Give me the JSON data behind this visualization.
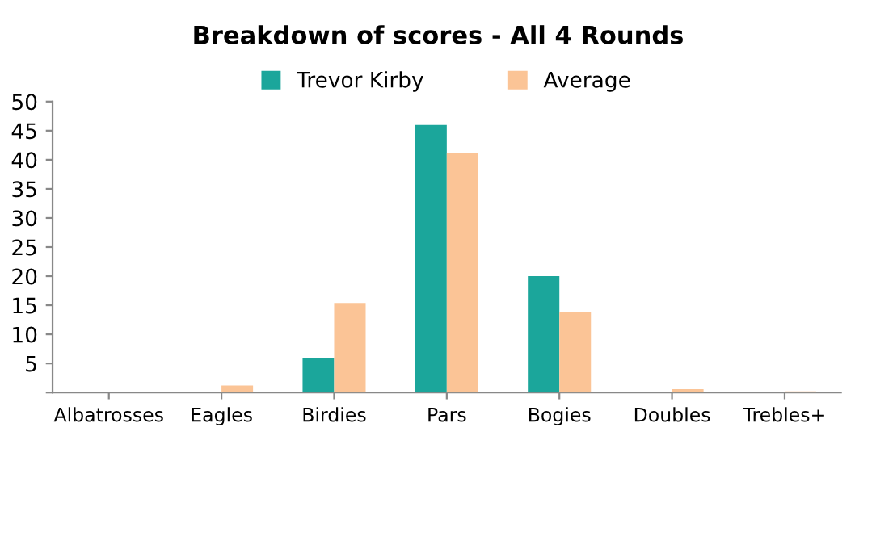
{
  "chart_data": {
    "type": "bar",
    "title": "Breakdown of scores - All 4 Rounds",
    "categories": [
      "Albatrosses",
      "Eagles",
      "Birdies",
      "Pars",
      "Bogies",
      "Doubles",
      "Trebles+"
    ],
    "series": [
      {
        "name": "Trevor Kirby",
        "color": "#1ba69b",
        "values": [
          0,
          0,
          6,
          46,
          20,
          0,
          0
        ]
      },
      {
        "name": "Average",
        "color": "#fbc496",
        "values": [
          0,
          1.2,
          15.4,
          41.1,
          13.8,
          0.6,
          0.2
        ]
      }
    ],
    "ylim": [
      0,
      50
    ],
    "yticks": [
      {
        "value": 0,
        "label": null
      },
      5,
      10,
      15,
      20,
      25,
      30,
      35,
      40,
      45,
      50
    ],
    "grid": false,
    "legend": "top"
  }
}
